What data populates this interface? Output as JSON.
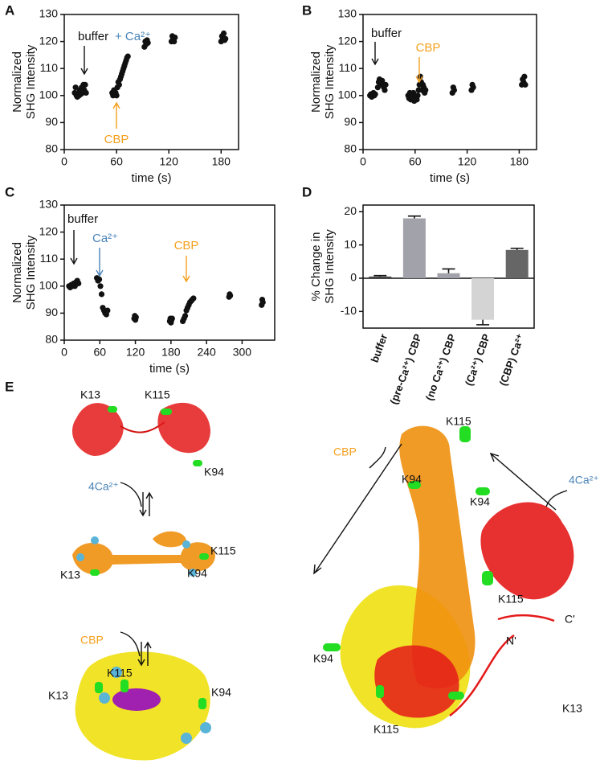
{
  "chart_data": [
    {
      "type": "scatter",
      "panel": "A",
      "xlabel": "time (s)",
      "ylabel": [
        "Normalized",
        "SHG Intensity"
      ],
      "xlim": [
        0,
        200
      ],
      "xticks": [
        0,
        60,
        120,
        180
      ],
      "ylim": [
        80,
        130
      ],
      "yticks": [
        80,
        90,
        100,
        110,
        120,
        130
      ],
      "annotations": [
        {
          "text": "buffer",
          "color": "#111111"
        },
        {
          "text": "+ Ca²⁺",
          "color": "#4a84b8"
        },
        {
          "text": "CBP",
          "color": "#f5a01e"
        }
      ],
      "series": [
        {
          "color": "#111111",
          "x": [
            12,
            13,
            14,
            15,
            16,
            17,
            18,
            19,
            20,
            21,
            22,
            23,
            24,
            25,
            55,
            56,
            57,
            58,
            59,
            60,
            61,
            62,
            63,
            64,
            65,
            66,
            67,
            68,
            69,
            70,
            71,
            72,
            73,
            92,
            93,
            94,
            95,
            96,
            123,
            124,
            125,
            126,
            127,
            180,
            181,
            182,
            183,
            184,
            185
          ],
          "values": [
            101,
            103,
            100,
            99.5,
            101,
            100,
            102,
            100.5,
            103,
            101,
            104,
            102,
            104,
            101,
            101,
            100,
            102,
            100.5,
            101,
            100,
            103,
            105,
            104,
            106,
            107,
            108,
            109,
            110,
            111,
            112,
            113,
            114,
            114.5,
            118,
            120,
            119,
            120.5,
            119.5,
            120,
            122,
            121,
            120,
            121.5,
            120,
            122,
            121,
            123,
            120.5,
            121
          ]
        }
      ]
    },
    {
      "type": "scatter",
      "panel": "B",
      "xlabel": "time (s)",
      "ylabel": [
        "Normalized",
        "SHG Intensity"
      ],
      "xlim": [
        0,
        200
      ],
      "xticks": [
        0,
        60,
        120,
        180
      ],
      "ylim": [
        80,
        130
      ],
      "yticks": [
        80,
        90,
        100,
        110,
        120,
        130
      ],
      "annotations": [
        {
          "text": "buffer",
          "color": "#111111"
        },
        {
          "text": "CBP",
          "color": "#f5a01e"
        }
      ],
      "series": [
        {
          "color": "#111111",
          "x": [
            8,
            9,
            10,
            11,
            12,
            13,
            14,
            17,
            18,
            19,
            20,
            21,
            22,
            24,
            25,
            26,
            52,
            53,
            54,
            55,
            56,
            57,
            58,
            59,
            60,
            61,
            62,
            63,
            64,
            65,
            66,
            67,
            68,
            69,
            70,
            71,
            72,
            103,
            104,
            105,
            125,
            126,
            127,
            183,
            184,
            185,
            186,
            187
          ],
          "values": [
            100,
            100.5,
            99.5,
            100,
            101,
            100,
            100.5,
            103,
            105,
            106,
            104,
            105,
            105.5,
            103,
            102,
            104,
            100,
            99,
            101,
            98.5,
            100,
            99,
            101,
            98,
            100,
            99,
            98.5,
            100,
            102,
            104,
            107,
            105,
            102,
            104,
            103,
            101,
            102,
            101,
            103,
            102,
            102,
            104,
            103,
            104,
            106,
            105,
            107,
            104
          ]
        }
      ]
    },
    {
      "type": "scatter",
      "panel": "C",
      "xlabel": "time (s)",
      "ylabel": [
        "Normalized",
        "SHG Intensity"
      ],
      "xlim": [
        0,
        355
      ],
      "xticks": [
        0,
        60,
        120,
        180,
        240,
        300
      ],
      "ylim": [
        80,
        130
      ],
      "yticks": [
        80,
        90,
        100,
        110,
        120,
        130
      ],
      "annotations": [
        {
          "text": "buffer",
          "color": "#111111"
        },
        {
          "text": "Ca²⁺",
          "color": "#4a84b8"
        },
        {
          "text": "CBP",
          "color": "#f5a01e"
        }
      ],
      "series": [
        {
          "color": "#111111",
          "x": [
            8,
            10,
            12,
            14,
            16,
            18,
            20,
            22,
            24,
            55,
            57,
            59,
            61,
            63,
            65,
            67,
            69,
            71,
            73,
            118,
            119,
            120,
            121,
            178,
            179,
            180,
            181,
            182,
            200,
            202,
            204,
            206,
            208,
            210,
            212,
            214,
            216,
            218,
            278,
            279,
            280,
            333,
            334,
            335
          ],
          "values": [
            100,
            99.5,
            100.5,
            100,
            101,
            100,
            101.5,
            102,
            101,
            103,
            102,
            102.5,
            100,
            97,
            92,
            91,
            90,
            89.5,
            91,
            88,
            89,
            87.5,
            88.5,
            87,
            88,
            86.5,
            87.5,
            88,
            87,
            88,
            89,
            91,
            92,
            93,
            94,
            94.5,
            95,
            95.5,
            96,
            97,
            96.5,
            93,
            95,
            94
          ]
        }
      ]
    },
    {
      "type": "bar",
      "panel": "D",
      "ylabel": [
        "% Change in",
        "SHG Intensity"
      ],
      "ylim": [
        -15,
        22
      ],
      "yticks": [
        -10,
        0,
        10,
        20
      ],
      "categories": [
        "buffer",
        "(pre-Ca²⁺) CBP",
        "(no Ca²⁺) CBP",
        "(Ca²⁺) CBP",
        "(CBP) Ca²⁺"
      ],
      "values": [
        0.5,
        18,
        1.5,
        -12.5,
        8.5
      ],
      "errors": [
        0.3,
        0.7,
        1.3,
        1.5,
        0.5
      ],
      "colors": [
        "#444444",
        "#a2a2aa",
        "#a2a2aa",
        "#d4d4d4",
        "#666666"
      ]
    }
  ],
  "panel_e": {
    "panel": "E",
    "labels": [
      "K13",
      "K115",
      "K94",
      "4Ca²⁺",
      "K115",
      "K13",
      "K94",
      "CBP",
      "K115",
      "K13",
      "K94",
      "K115",
      "CBP",
      "K94",
      "K94",
      "4Ca²⁺",
      "K115",
      "C'",
      "N'",
      "K94",
      "K13",
      "K115"
    ]
  }
}
